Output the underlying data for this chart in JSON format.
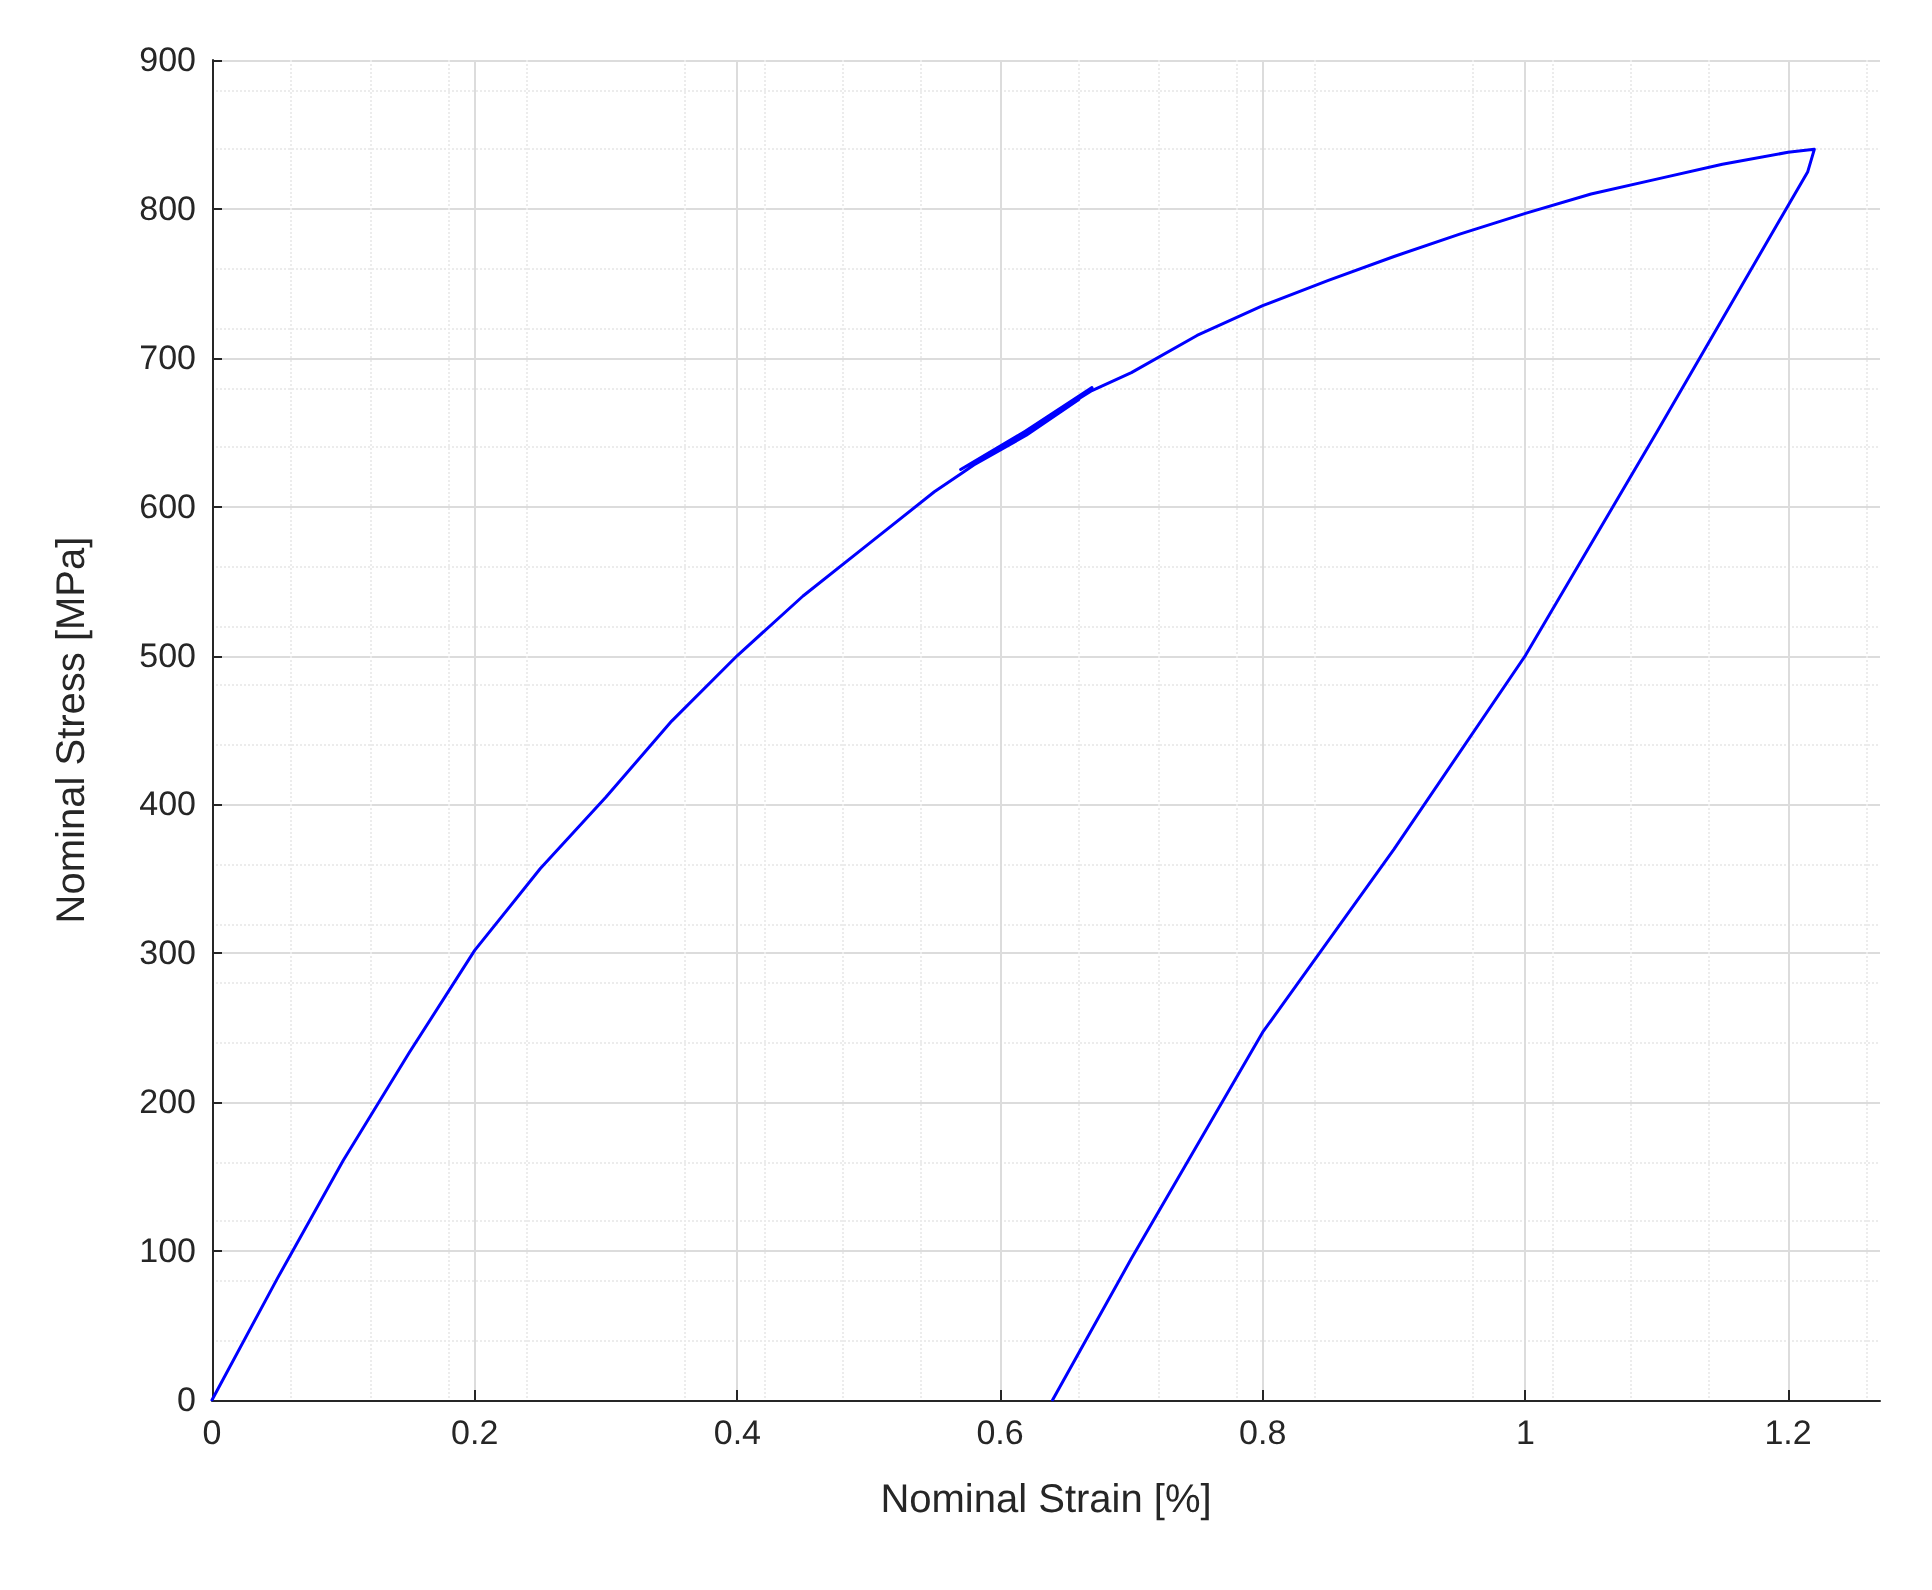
{
  "chart_data": {
    "type": "line",
    "xlabel": "Nominal Strain [%]",
    "ylabel": "Nominal Stress [MPa]",
    "xlim": [
      0,
      1.27
    ],
    "ylim": [
      0,
      900
    ],
    "xticks": [
      0,
      0.2,
      0.4,
      0.6,
      0.8,
      1,
      1.2
    ],
    "yticks": [
      0,
      100,
      200,
      300,
      400,
      500,
      600,
      700,
      800,
      900
    ],
    "grid": true,
    "marker": "none",
    "line_style": "solid",
    "series": [
      {
        "color": "#0000ff",
        "x": [
          0,
          0.05,
          0.1,
          0.15,
          0.2,
          0.25,
          0.3,
          0.35,
          0.4,
          0.45,
          0.5,
          0.55,
          0.57,
          0.6,
          0.63,
          0.67,
          0.58,
          0.62,
          0.66,
          0.57,
          0.61,
          0.67,
          0.7,
          0.75,
          0.8,
          0.85,
          0.9,
          0.95,
          1,
          1.05,
          1.1,
          1.15,
          1.2,
          1.22,
          1.215,
          1.1,
          1,
          0.9,
          0.8,
          0.7,
          0.64
        ],
        "values": [
          0,
          82,
          161,
          233,
          302,
          357,
          405,
          456,
          500,
          540,
          575,
          610,
          622,
          640,
          655,
          680,
          628,
          648,
          672,
          625,
          645,
          678,
          690,
          715,
          735,
          752,
          768,
          783,
          797,
          810,
          820,
          830,
          838,
          840,
          825,
          650,
          500,
          370,
          247,
          95,
          0
        ]
      }
    ]
  }
}
